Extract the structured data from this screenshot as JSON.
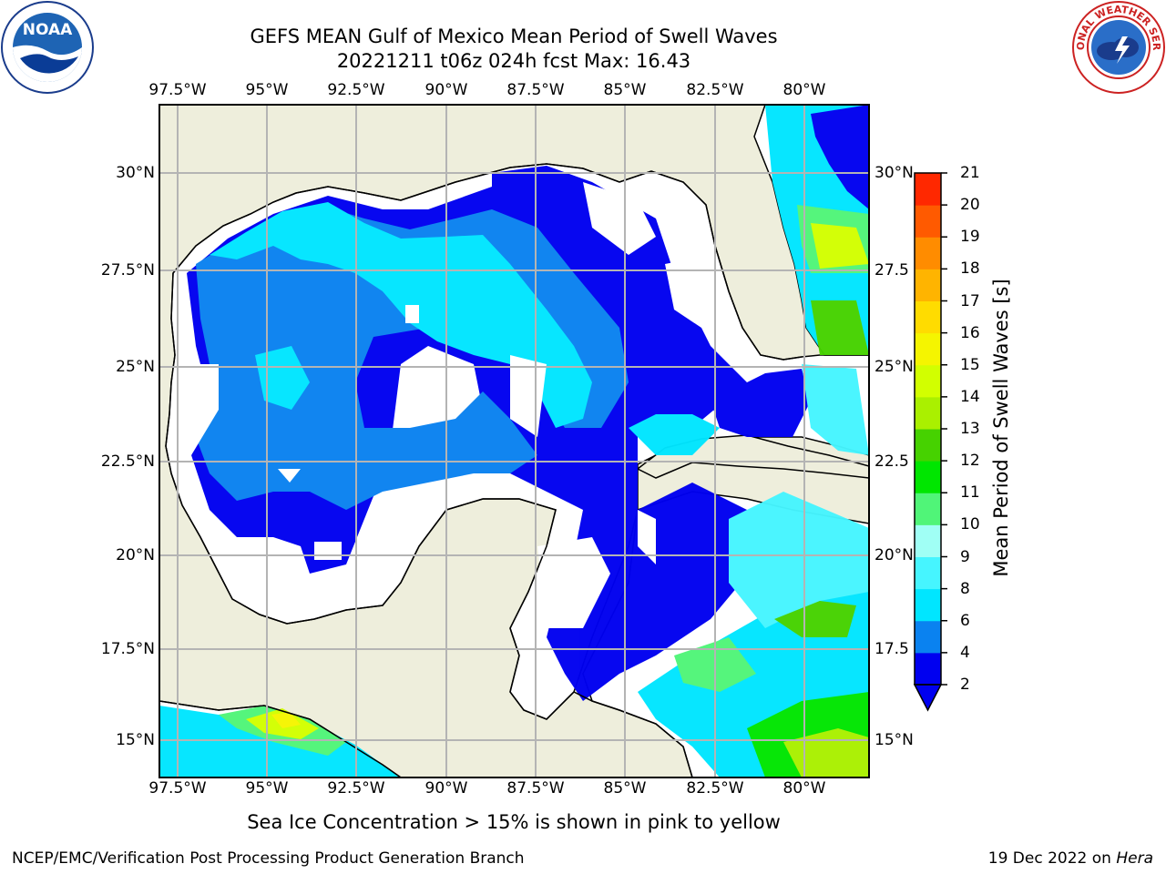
{
  "title_line1": "GEFS MEAN Gulf of Mexico Mean Period of Swell Waves",
  "title_line2": "20221211 t06z 024h fcst   Max: 16.43",
  "lon_labels": [
    "97.5°W",
    "95°W",
    "92.5°W",
    "90°W",
    "87.5°W",
    "85°W",
    "82.5°W",
    "80°W"
  ],
  "lat_labels_left": [
    "30°N",
    "27.5°N",
    "25°N",
    "22.5°N",
    "20°N",
    "17.5°N",
    "15°N"
  ],
  "lat_labels_right": [
    "30°N",
    "27.5",
    "25°N",
    "22.5",
    "20°N",
    "17.5",
    "15°N"
  ],
  "colorbar": {
    "title": "Mean Period of Swell Waves [s]",
    "ticks": [
      "2",
      "4",
      "6",
      "8",
      "9",
      "10",
      "11",
      "12",
      "13",
      "14",
      "15",
      "16",
      "17",
      "18",
      "19",
      "20",
      "21"
    ],
    "colors": [
      "#0000f0",
      "#0a82f0",
      "#00e6ff",
      "#46f5ff",
      "#a0fff5",
      "#50f578",
      "#00e600",
      "#46d200",
      "#aaf000",
      "#d2ff00",
      "#f5f500",
      "#ffdc00",
      "#ffb400",
      "#ff8c00",
      "#ff5a00",
      "#ff2800"
    ],
    "extend_color": "#0000f0"
  },
  "colors": {
    "land": "#eeeedc",
    "no_swell": "#ffffff",
    "grid": "#b4b4b4"
  },
  "logos": {
    "noaa_text": "NOAA",
    "nws_text": "NATIONAL WEATHER SERVICE"
  },
  "map_extent": {
    "lon_min": -98.5,
    "lon_max": -78.7,
    "lat_min": 14.0,
    "lat_max": 31.8
  },
  "note": "Sea Ice Concentration > 15% is shown in pink to yellow",
  "footer_left": "NCEP/EMC/Verification Post Processing Product Generation Branch",
  "footer_right_date": "19 Dec 2022 on ",
  "footer_right_host": "Hera"
}
